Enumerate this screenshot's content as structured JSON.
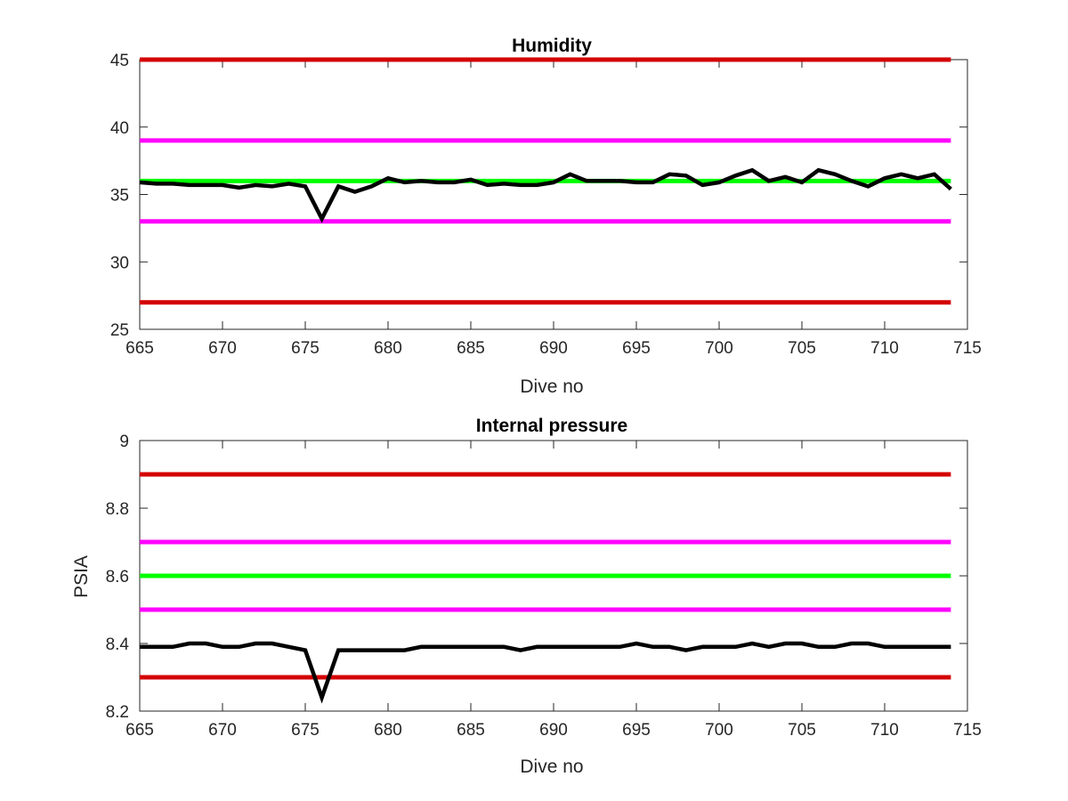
{
  "chart_data": [
    {
      "type": "line",
      "title": "Humidity",
      "xlabel": "Dive no",
      "ylabel": "",
      "xlim": [
        665,
        715
      ],
      "ylim": [
        25,
        45
      ],
      "xticks": [
        665,
        670,
        675,
        680,
        685,
        690,
        695,
        700,
        705,
        710,
        715
      ],
      "yticks": [
        25,
        30,
        35,
        40,
        45
      ],
      "grid": false,
      "reference_lines": [
        {
          "y": 45,
          "color": "#d40000"
        },
        {
          "y": 39,
          "color": "#ff00ff"
        },
        {
          "y": 36,
          "color": "#00ff00"
        },
        {
          "y": 33,
          "color": "#ff00ff"
        },
        {
          "y": 27,
          "color": "#d40000"
        }
      ],
      "series": [
        {
          "color": "#000000",
          "x": [
            665,
            666,
            667,
            668,
            669,
            670,
            671,
            672,
            673,
            674,
            675,
            676,
            677,
            678,
            679,
            680,
            681,
            682,
            683,
            684,
            685,
            686,
            687,
            688,
            689,
            690,
            691,
            692,
            693,
            694,
            695,
            696,
            697,
            698,
            699,
            700,
            701,
            702,
            703,
            704,
            705,
            706,
            707,
            708,
            709,
            710,
            711,
            712,
            713,
            714
          ],
          "values": [
            35.9,
            35.8,
            35.8,
            35.7,
            35.7,
            35.7,
            35.5,
            35.7,
            35.6,
            35.8,
            35.6,
            33.2,
            35.6,
            35.2,
            35.6,
            36.2,
            35.9,
            36.0,
            35.9,
            35.9,
            36.1,
            35.7,
            35.8,
            35.7,
            35.7,
            35.9,
            36.5,
            36.0,
            36.0,
            36.0,
            35.9,
            35.9,
            36.5,
            36.4,
            35.7,
            35.9,
            36.4,
            36.8,
            36.0,
            36.3,
            35.9,
            36.8,
            36.5,
            36.0,
            35.6,
            36.2,
            36.5,
            36.2,
            36.5,
            35.4
          ]
        }
      ]
    },
    {
      "type": "line",
      "title": "Internal pressure",
      "xlabel": "Dive no",
      "ylabel": "PSIA",
      "xlim": [
        665,
        715
      ],
      "ylim": [
        8.2,
        9
      ],
      "xticks": [
        665,
        670,
        675,
        680,
        685,
        690,
        695,
        700,
        705,
        710,
        715
      ],
      "yticks": [
        8.2,
        8.4,
        8.6,
        8.8,
        9
      ],
      "ytick_labels": [
        "8.2",
        "8.4",
        "8.6",
        "8.8",
        "9"
      ],
      "grid": false,
      "reference_lines": [
        {
          "y": 8.9,
          "color": "#d40000"
        },
        {
          "y": 8.7,
          "color": "#ff00ff"
        },
        {
          "y": 8.6,
          "color": "#00ff00"
        },
        {
          "y": 8.5,
          "color": "#ff00ff"
        },
        {
          "y": 8.3,
          "color": "#d40000"
        }
      ],
      "series": [
        {
          "color": "#000000",
          "x": [
            665,
            666,
            667,
            668,
            669,
            670,
            671,
            672,
            673,
            674,
            675,
            676,
            677,
            678,
            679,
            680,
            681,
            682,
            683,
            684,
            685,
            686,
            687,
            688,
            689,
            690,
            691,
            692,
            693,
            694,
            695,
            696,
            697,
            698,
            699,
            700,
            701,
            702,
            703,
            704,
            705,
            706,
            707,
            708,
            709,
            710,
            711,
            712,
            713,
            714
          ],
          "values": [
            8.39,
            8.39,
            8.39,
            8.4,
            8.4,
            8.39,
            8.39,
            8.4,
            8.4,
            8.39,
            8.38,
            8.24,
            8.38,
            8.38,
            8.38,
            8.38,
            8.38,
            8.39,
            8.39,
            8.39,
            8.39,
            8.39,
            8.39,
            8.38,
            8.39,
            8.39,
            8.39,
            8.39,
            8.39,
            8.39,
            8.4,
            8.39,
            8.39,
            8.38,
            8.39,
            8.39,
            8.39,
            8.4,
            8.39,
            8.4,
            8.4,
            8.39,
            8.39,
            8.4,
            8.4,
            8.39,
            8.39,
            8.39,
            8.39,
            8.39
          ]
        }
      ]
    }
  ]
}
